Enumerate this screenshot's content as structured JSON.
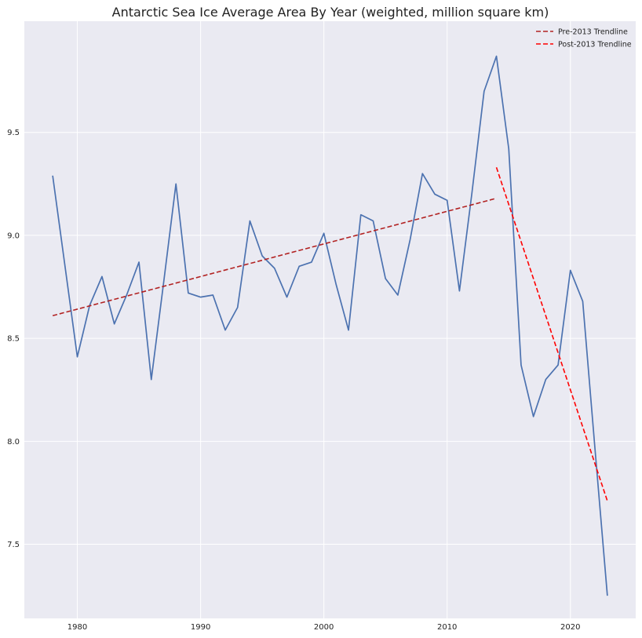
{
  "chart_data": {
    "type": "line",
    "title": "Antarctic Sea Ice Average Area By Year (weighted, million square km)",
    "xlabel": "",
    "ylabel": "",
    "xlim": [
      1975.7,
      2025.3
    ],
    "ylim": [
      7.14,
      10.04
    ],
    "xticks": [
      1980,
      1990,
      2000,
      2010,
      2020
    ],
    "yticks": [
      7.5,
      8.0,
      8.5,
      9.0,
      9.5
    ],
    "grid": true,
    "legend_position": "top-right",
    "series": [
      {
        "color": "#4c72b0",
        "style": "solid",
        "x": [
          1978,
          1979,
          1980,
          1981,
          1982,
          1983,
          1984,
          1985,
          1986,
          1987,
          1988,
          1989,
          1990,
          1991,
          1992,
          1993,
          1994,
          1995,
          1996,
          1997,
          1998,
          1999,
          2000,
          2001,
          2002,
          2003,
          2004,
          2005,
          2006,
          2007,
          2008,
          2009,
          2010,
          2011,
          2012,
          2013,
          2014,
          2015,
          2016,
          2017,
          2018,
          2019,
          2020,
          2021,
          2022,
          2023
        ],
        "y": [
          9.29,
          8.85,
          8.41,
          8.66,
          8.8,
          8.57,
          8.71,
          8.87,
          8.3,
          8.77,
          9.25,
          8.72,
          8.7,
          8.71,
          8.54,
          8.65,
          9.07,
          8.9,
          8.84,
          8.7,
          8.85,
          8.87,
          9.01,
          8.76,
          8.54,
          9.1,
          9.07,
          8.79,
          8.71,
          8.98,
          9.3,
          9.2,
          9.17,
          8.73,
          9.2,
          9.7,
          9.87,
          9.42,
          8.37,
          8.12,
          8.3,
          8.37,
          8.83,
          8.68,
          7.96,
          7.25
        ]
      },
      {
        "name": "Pre-2013 Trendline",
        "color": "#b22222",
        "style": "dashed",
        "x": [
          1978,
          2014
        ],
        "y": [
          8.61,
          9.18
        ]
      },
      {
        "name": "Post-2013 Trendline",
        "color": "#ff0000",
        "style": "dashed",
        "x": [
          2014,
          2023
        ],
        "y": [
          9.33,
          7.71
        ]
      }
    ]
  }
}
